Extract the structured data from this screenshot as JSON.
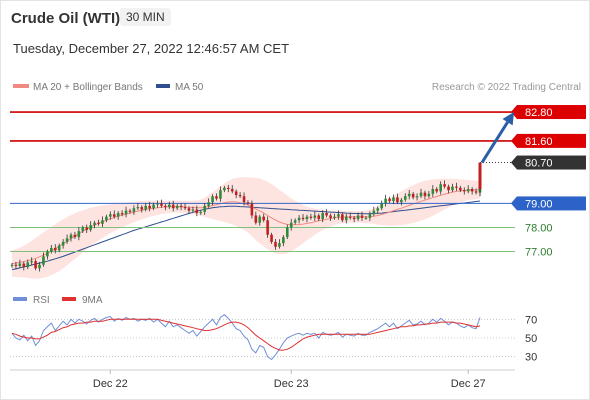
{
  "header": {
    "title": "Crude Oil (WTI)",
    "timeframe": "30 MIN",
    "datetime": "Tuesday, December 27, 2022 12:46:57 AM CET"
  },
  "legend": {
    "ma20": "MA 20 + Bollinger Bands",
    "ma50": "MA 50",
    "credit": "Research © 2022 Trading Central",
    "rsi": "RSI",
    "ma9": "9MA"
  },
  "colors": {
    "ma20": "#f08a80",
    "ma50": "#2f4f8f",
    "band": "#fde4e0",
    "resistance": "#cc0000",
    "pivot": "#3366cc",
    "support": "#339933",
    "bull": "#2e8b3a",
    "bear": "#c02020",
    "arrow": "#2b5ea8",
    "rsi": "#6f8fd8",
    "ma9": "#e03030",
    "current_badge": "#333333"
  },
  "chart_data": {
    "type": "candlestick",
    "levels": [
      {
        "value": 82.8,
        "label": "82.80",
        "kind": "resistance"
      },
      {
        "value": 81.6,
        "label": "81.60",
        "kind": "resistance"
      },
      {
        "value": 80.7,
        "label": "80.70",
        "kind": "current"
      },
      {
        "value": 79.0,
        "label": "79.00",
        "kind": "pivot"
      },
      {
        "value": 78.0,
        "label": "78.00",
        "kind": "support"
      },
      {
        "value": 77.0,
        "label": "77.00",
        "kind": "support"
      }
    ],
    "arrow": {
      "from": 80.7,
      "to": 82.8
    },
    "price_range": [
      75.9,
      83.3
    ],
    "x_labels": [
      {
        "label": "Dec 22",
        "index": 25
      },
      {
        "label": "Dec 23",
        "index": 71
      },
      {
        "label": "Dec 27",
        "index": 116
      }
    ],
    "candle_count": 120,
    "close": [
      76.45,
      76.4,
      76.5,
      76.35,
      76.55,
      76.6,
      76.3,
      76.45,
      76.8,
      77.0,
      77.15,
      77.05,
      77.25,
      77.4,
      77.55,
      77.7,
      77.6,
      77.85,
      78.0,
      77.9,
      78.1,
      78.2,
      78.15,
      78.3,
      78.45,
      78.55,
      78.45,
      78.6,
      78.55,
      78.7,
      78.65,
      78.8,
      78.85,
      78.75,
      78.9,
      78.8,
      78.95,
      79.0,
      78.9,
      78.85,
      78.95,
      78.8,
      78.9,
      78.85,
      78.8,
      78.7,
      78.75,
      78.6,
      78.65,
      78.9,
      79.05,
      79.3,
      79.2,
      79.55,
      79.65,
      79.6,
      79.5,
      79.35,
      79.3,
      79.05,
      79.0,
      78.5,
      78.2,
      78.45,
      78.3,
      77.7,
      77.4,
      77.2,
      77.35,
      77.6,
      78.0,
      78.2,
      78.3,
      78.4,
      78.35,
      78.45,
      78.4,
      78.5,
      78.35,
      78.6,
      78.5,
      78.4,
      78.45,
      78.55,
      78.3,
      78.45,
      78.4,
      78.35,
      78.5,
      78.4,
      78.4,
      78.55,
      78.7,
      78.8,
      79.0,
      79.2,
      79.1,
      79.25,
      79.05,
      79.15,
      79.3,
      79.4,
      79.25,
      79.3,
      79.45,
      79.3,
      79.4,
      79.6,
      79.5,
      79.8,
      79.7,
      79.55,
      79.7,
      79.65,
      79.55,
      79.5,
      79.6,
      79.5,
      79.45,
      79.6
    ],
    "last_candle": {
      "open": 79.6,
      "high": 80.7,
      "low": 79.3,
      "close": 80.7
    },
    "ma20": [
      76.5,
      76.52,
      76.55,
      76.58,
      76.62,
      76.66,
      76.72,
      76.78,
      76.85,
      76.93,
      77.02,
      77.12,
      77.22,
      77.32,
      77.43,
      77.54,
      77.64,
      77.74,
      77.84,
      77.93,
      78.02,
      78.1,
      78.17,
      78.24,
      78.3,
      78.36,
      78.42,
      78.47,
      78.52,
      78.56,
      78.6,
      78.64,
      78.68,
      78.72,
      78.75,
      78.78,
      78.8,
      78.82,
      78.84,
      78.85,
      78.86,
      78.87,
      78.87,
      78.86,
      78.85,
      78.84,
      78.83,
      78.82,
      78.82,
      78.84,
      78.87,
      78.91,
      78.95,
      78.99,
      79.03,
      79.06,
      79.07,
      79.06,
      79.03,
      78.99,
      78.94,
      78.86,
      78.77,
      78.69,
      78.6,
      78.5,
      78.4,
      78.31,
      78.23,
      78.17,
      78.13,
      78.11,
      78.11,
      78.12,
      78.14,
      78.17,
      78.2,
      78.24,
      78.28,
      78.31,
      78.34,
      78.37,
      78.4,
      78.42,
      78.43,
      78.44,
      78.44,
      78.44,
      78.44,
      78.44,
      78.44,
      78.45,
      78.47,
      78.5,
      78.54,
      78.59,
      78.64,
      78.7,
      78.75,
      78.8,
      78.86,
      78.92,
      78.98,
      79.03,
      79.09,
      79.14,
      79.19,
      79.24,
      79.29,
      79.34,
      79.39,
      79.43,
      79.47,
      79.5,
      79.52,
      79.54,
      79.55,
      79.56,
      79.56,
      79.57
    ],
    "band_width": [
      0.55,
      0.58,
      0.62,
      0.66,
      0.72,
      0.78,
      0.85,
      0.9,
      0.95,
      0.98,
      1.0,
      1.02,
      1.03,
      1.02,
      1.0,
      0.98,
      0.95,
      0.92,
      0.88,
      0.84,
      0.8,
      0.76,
      0.72,
      0.68,
      0.64,
      0.6,
      0.57,
      0.54,
      0.51,
      0.48,
      0.45,
      0.42,
      0.4,
      0.38,
      0.36,
      0.34,
      0.32,
      0.3,
      0.28,
      0.27,
      0.26,
      0.25,
      0.25,
      0.25,
      0.26,
      0.27,
      0.28,
      0.3,
      0.34,
      0.4,
      0.48,
      0.56,
      0.64,
      0.72,
      0.8,
      0.88,
      0.94,
      1.0,
      1.05,
      1.1,
      1.15,
      1.22,
      1.3,
      1.35,
      1.38,
      1.4,
      1.4,
      1.38,
      1.34,
      1.28,
      1.2,
      1.1,
      1.0,
      0.9,
      0.8,
      0.7,
      0.62,
      0.55,
      0.48,
      0.42,
      0.37,
      0.33,
      0.3,
      0.28,
      0.26,
      0.25,
      0.24,
      0.24,
      0.24,
      0.25,
      0.26,
      0.28,
      0.32,
      0.38,
      0.44,
      0.5,
      0.56,
      0.62,
      0.66,
      0.7,
      0.74,
      0.76,
      0.78,
      0.8,
      0.8,
      0.8,
      0.78,
      0.76,
      0.72,
      0.68,
      0.64,
      0.6,
      0.56,
      0.52,
      0.48,
      0.45,
      0.42,
      0.4,
      0.38,
      0.36
    ],
    "ma50": [
      76.25,
      76.28,
      76.32,
      76.36,
      76.4,
      76.44,
      76.48,
      76.52,
      76.56,
      76.6,
      76.65,
      76.7,
      76.75,
      76.8,
      76.86,
      76.92,
      76.98,
      77.04,
      77.1,
      77.16,
      77.22,
      77.28,
      77.34,
      77.4,
      77.46,
      77.52,
      77.58,
      77.64,
      77.7,
      77.76,
      77.82,
      77.88,
      77.93,
      77.98,
      78.03,
      78.08,
      78.13,
      78.18,
      78.23,
      78.28,
      78.33,
      78.38,
      78.43,
      78.48,
      78.53,
      78.58,
      78.63,
      78.68,
      78.72,
      78.76,
      78.79,
      78.82,
      78.84,
      78.86,
      78.87,
      78.88,
      78.88,
      78.88,
      78.87,
      78.86,
      78.85,
      78.84,
      78.83,
      78.82,
      78.81,
      78.8,
      78.79,
      78.78,
      78.77,
      78.76,
      78.75,
      78.74,
      78.73,
      78.72,
      78.71,
      78.7,
      78.69,
      78.68,
      78.67,
      78.66,
      78.65,
      78.64,
      78.63,
      78.62,
      78.61,
      78.6,
      78.59,
      78.58,
      78.58,
      78.57,
      78.57,
      78.57,
      78.58,
      78.59,
      78.6,
      78.62,
      78.64,
      78.66,
      78.68,
      78.7,
      78.72,
      78.74,
      78.76,
      78.78,
      78.8,
      78.82,
      78.84,
      78.86,
      78.88,
      78.9,
      78.92,
      78.94,
      78.96,
      78.98,
      79.0,
      79.02,
      79.04,
      79.06,
      79.08,
      79.1
    ],
    "rsi_levels": [
      70,
      50,
      30
    ],
    "rsi_range": [
      20,
      80
    ],
    "rsi": [
      55,
      50,
      48,
      53,
      47,
      52,
      42,
      47,
      58,
      62,
      66,
      58,
      63,
      68,
      64,
      70,
      66,
      70,
      68,
      65,
      69,
      71,
      67,
      70,
      72,
      73,
      68,
      71,
      69,
      72,
      70,
      71,
      68,
      70,
      69,
      71,
      67,
      70,
      66,
      62,
      68,
      62,
      64,
      61,
      58,
      55,
      58,
      52,
      57,
      62,
      66,
      70,
      64,
      72,
      75,
      71,
      66,
      60,
      58,
      52,
      48,
      38,
      34,
      42,
      40,
      30,
      27,
      32,
      38,
      45,
      50,
      52,
      54,
      55,
      53,
      55,
      54,
      55,
      50,
      56,
      54,
      53,
      54,
      56,
      51,
      54,
      53,
      52,
      55,
      53,
      53,
      56,
      58,
      60,
      63,
      66,
      62,
      66,
      60,
      63,
      66,
      69,
      64,
      65,
      68,
      64,
      66,
      70,
      67,
      71,
      68,
      64,
      67,
      66,
      63,
      61,
      64,
      61,
      60,
      72
    ],
    "ma9": [
      55,
      54,
      52,
      51,
      50,
      50,
      49,
      49,
      51,
      53,
      56,
      57,
      59,
      61,
      62,
      64,
      65,
      66,
      66,
      67,
      67,
      68,
      68,
      68,
      69,
      70,
      70,
      70,
      70,
      70,
      70,
      70,
      70,
      70,
      70,
      70,
      70,
      70,
      69,
      68,
      67,
      66,
      65,
      64,
      63,
      62,
      61,
      60,
      59,
      58,
      58,
      59,
      60,
      62,
      64,
      66,
      67,
      67,
      66,
      64,
      61,
      57,
      53,
      50,
      47,
      44,
      41,
      39,
      37,
      37,
      38,
      40,
      43,
      46,
      49,
      51,
      52,
      53,
      54,
      54,
      54,
      54,
      54,
      54,
      54,
      54,
      54,
      54,
      54,
      54,
      54,
      54,
      55,
      56,
      57,
      58,
      59,
      60,
      61,
      62,
      62,
      63,
      63,
      64,
      64,
      65,
      65,
      66,
      66,
      67,
      67,
      67,
      67,
      66,
      66,
      65,
      64,
      63,
      62,
      63
    ]
  }
}
